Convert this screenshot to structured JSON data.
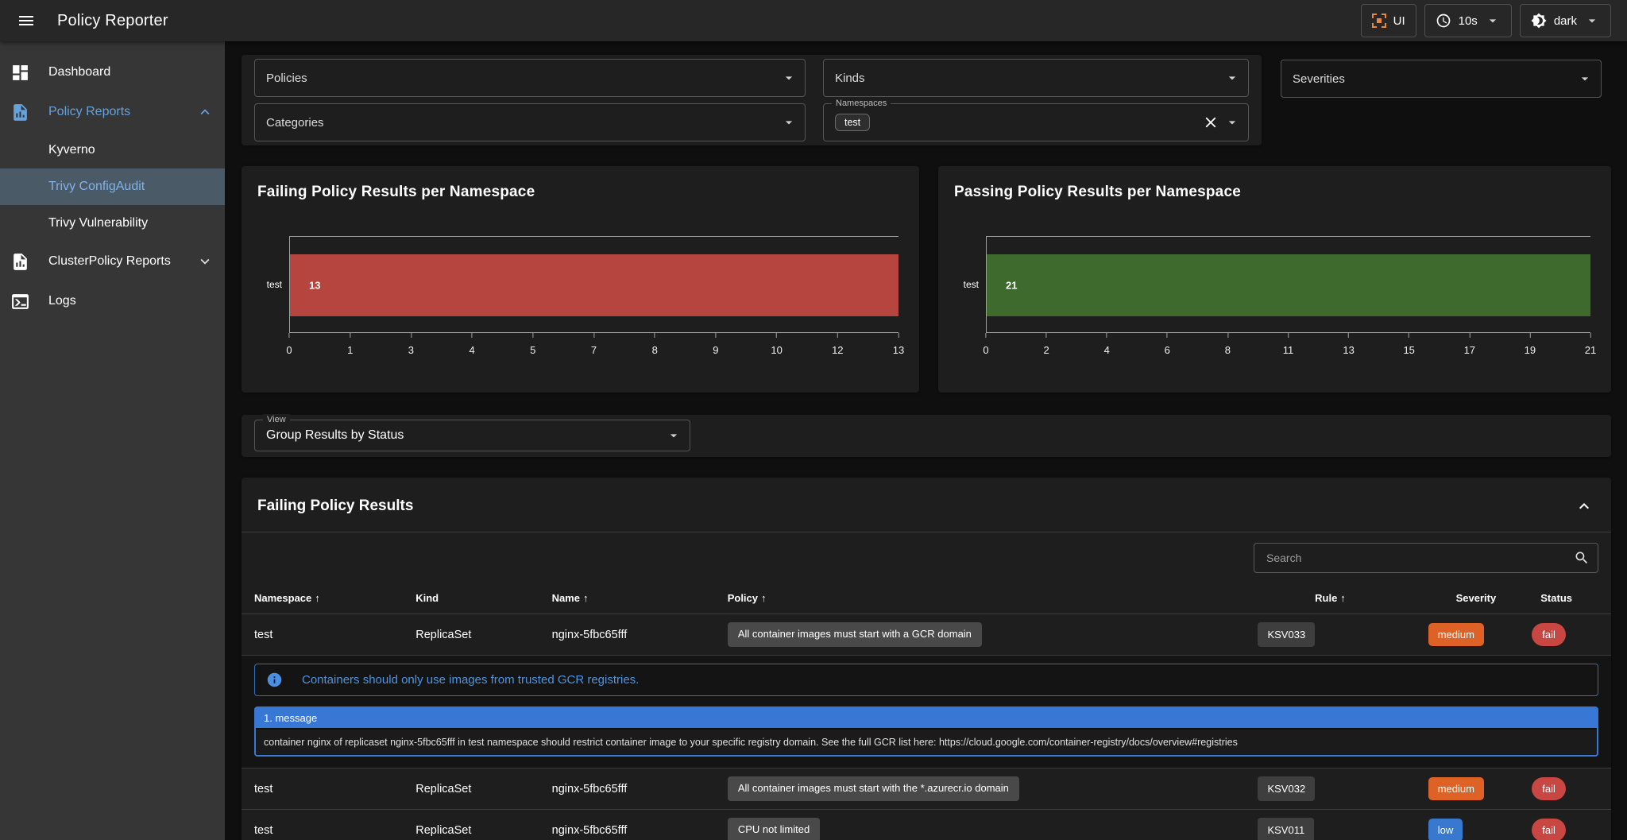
{
  "topbar": {
    "title": "Policy Reporter",
    "ui_label": "UI",
    "interval_value": "10s",
    "theme_value": "dark"
  },
  "sidebar": {
    "items": [
      {
        "label": "Dashboard",
        "icon": "dashboard-icon"
      },
      {
        "label": "Policy Reports",
        "icon": "file-chart-icon",
        "active": true,
        "chevron": "up"
      },
      {
        "label": "Kyverno",
        "sub": true
      },
      {
        "label": "Trivy ConfigAudit",
        "sub": true,
        "selected": true
      },
      {
        "label": "Trivy Vulnerability",
        "sub": true
      },
      {
        "label": "ClusterPolicy Reports",
        "icon": "file-chart-icon",
        "chevron": "down"
      },
      {
        "label": "Logs",
        "icon": "console-icon"
      }
    ]
  },
  "filters": {
    "policies_label": "Policies",
    "kinds_label": "Kinds",
    "severities_label": "Severities",
    "categories_label": "Categories",
    "namespaces": {
      "label": "Namespaces",
      "chips": [
        "test"
      ]
    }
  },
  "view": {
    "label": "View",
    "value": "Group Results by Status"
  },
  "chart_data": [
    {
      "type": "bar",
      "orientation": "horizontal",
      "title": "Failing Policy Results per Namespace",
      "categories": [
        "test"
      ],
      "values": [
        13
      ],
      "xticks": [
        0,
        1,
        3,
        4,
        5,
        7,
        8,
        9,
        10,
        12,
        13
      ],
      "xlim": [
        0,
        13
      ],
      "bar_color": "#b64540",
      "grid": false,
      "value_labels": true
    },
    {
      "type": "bar",
      "orientation": "horizontal",
      "title": "Passing Policy Results per Namespace",
      "categories": [
        "test"
      ],
      "values": [
        21
      ],
      "xticks": [
        0,
        2,
        4,
        6,
        8,
        11,
        13,
        15,
        17,
        19,
        21
      ],
      "xlim": [
        0,
        21
      ],
      "bar_color": "#3e6b2d",
      "grid": false,
      "value_labels": true
    }
  ],
  "results": {
    "title": "Failing Policy Results",
    "search_placeholder": "Search",
    "sort_arrow": "↑",
    "columns": [
      {
        "label": "Namespace",
        "sorted": true
      },
      {
        "label": "Kind",
        "sorted": false
      },
      {
        "label": "Name",
        "sorted": true
      },
      {
        "label": "Policy",
        "sorted": true
      },
      {
        "label": "Rule",
        "sorted": true
      },
      {
        "label": "Severity",
        "sorted": false
      },
      {
        "label": "Status",
        "sorted": false
      }
    ],
    "rows": [
      {
        "namespace": "test",
        "kind": "ReplicaSet",
        "name": "nginx-5fbc65fff",
        "policy": "All container images must start with a GCR domain",
        "rule": "KSV033",
        "severity": "medium",
        "status": "fail",
        "expanded": {
          "description": "Containers should only use images from trusted GCR registries.",
          "messages_header": "1. message",
          "message": "container nginx of replicaset nginx-5fbc65fff in test namespace should restrict container image to your specific registry domain. See the full GCR list here: https://cloud.google.com/container-registry/docs/overview#registries"
        }
      },
      {
        "namespace": "test",
        "kind": "ReplicaSet",
        "name": "nginx-5fbc65fff",
        "policy": "All container images must start with the *.azurecr.io domain",
        "rule": "KSV032",
        "severity": "medium",
        "status": "fail"
      },
      {
        "namespace": "test",
        "kind": "ReplicaSet",
        "name": "nginx-5fbc65fff",
        "policy": "CPU not limited",
        "rule": "KSV011",
        "severity": "low",
        "status": "fail"
      }
    ]
  },
  "colors": {
    "accent_blue": "#64a3de",
    "failing_bar": "#b64540",
    "passing_bar": "#3e6b2d",
    "info_blue": "#3878d4",
    "ui_icon_orange": "#e8883a",
    "severity": {
      "medium": "#de6226",
      "low": "#3878ce"
    },
    "status": {
      "fail": "#c84743"
    }
  }
}
